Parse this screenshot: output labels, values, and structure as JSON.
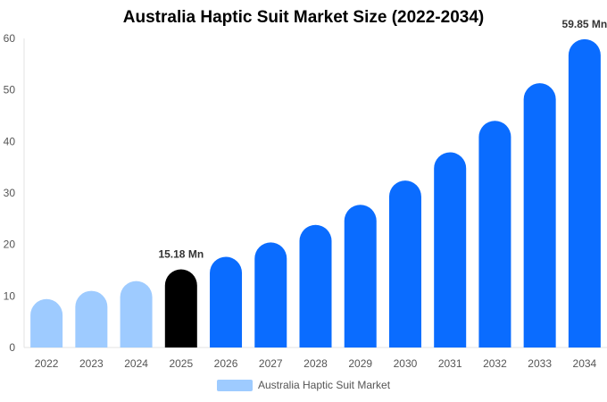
{
  "chart_data": {
    "type": "bar",
    "title": "Australia Haptic Suit Market Size (2022-2034)",
    "categories": [
      "2022",
      "2023",
      "2024",
      "2025",
      "2026",
      "2027",
      "2028",
      "2029",
      "2030",
      "2031",
      "2032",
      "2033",
      "2034"
    ],
    "series": [
      {
        "name": "Australia Haptic Suit Market",
        "values": [
          9.4,
          11.0,
          12.9,
          15.18,
          17.6,
          20.4,
          23.8,
          27.7,
          32.4,
          37.9,
          44.0,
          51.3,
          59.85
        ]
      }
    ],
    "bar_colors": [
      "#9ecbff",
      "#9ecbff",
      "#9ecbff",
      "#000000",
      "#0a6cff",
      "#0a6cff",
      "#0a6cff",
      "#0a6cff",
      "#0a6cff",
      "#0a6cff",
      "#0a6cff",
      "#0a6cff",
      "#0a6cff"
    ],
    "legend_color": "#9ecbff",
    "data_labels": [
      {
        "category": "2025",
        "text": "15.18 Mn"
      },
      {
        "category": "2034",
        "text": "59.85 Mn"
      }
    ],
    "ylim": [
      0,
      60
    ],
    "yticks": [
      0,
      10,
      20,
      30,
      40,
      50,
      60
    ],
    "xlabel": "",
    "ylabel": "",
    "grid": false,
    "legend_position": "bottom"
  }
}
